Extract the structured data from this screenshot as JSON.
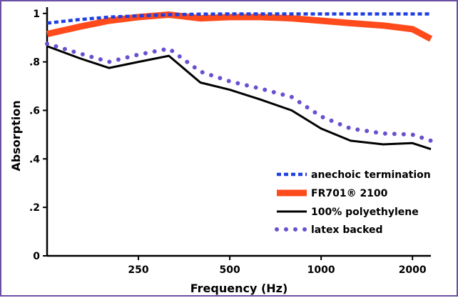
{
  "chart_data": {
    "type": "line",
    "title": "",
    "xlabel": "Frequency (Hz)",
    "ylabel": "Absorption",
    "xlim": [
      125,
      2300
    ],
    "ylim": [
      0,
      1.02
    ],
    "x_ticks": [
      250,
      500,
      1000,
      2000
    ],
    "x_tick_labels": [
      "250",
      "500",
      "1000",
      "2000"
    ],
    "y_ticks": [
      0,
      0.2,
      0.4,
      0.6,
      0.8,
      1.0
    ],
    "y_tick_labels": [
      "0",
      ".2",
      ".4",
      ".6",
      ".8",
      "1"
    ],
    "grid": false,
    "legend_position": "bottom-right",
    "series": [
      {
        "name": "anechoic termination",
        "color": "#1f3fe0",
        "style": "dashed",
        "x": [
          125,
          160,
          200,
          250,
          315,
          400,
          500,
          630,
          800,
          1000,
          1250,
          1600,
          2000,
          2300
        ],
        "y": [
          0.96,
          0.975,
          0.985,
          0.99,
          0.995,
          0.997,
          0.998,
          0.998,
          0.998,
          0.998,
          0.998,
          0.998,
          0.998,
          0.998
        ]
      },
      {
        "name": "FR701® 2100",
        "color": "#ff4a1c",
        "style": "solid-thick",
        "x": [
          125,
          160,
          200,
          250,
          315,
          400,
          500,
          630,
          800,
          1000,
          1250,
          1600,
          2000,
          2300
        ],
        "y": [
          0.915,
          0.945,
          0.97,
          0.985,
          0.995,
          0.98,
          0.985,
          0.985,
          0.98,
          0.97,
          0.96,
          0.95,
          0.935,
          0.895
        ]
      },
      {
        "name": "100% polyethylene",
        "color": "#000000",
        "style": "solid",
        "x": [
          125,
          160,
          200,
          250,
          315,
          400,
          500,
          630,
          800,
          1000,
          1250,
          1600,
          2000,
          2300
        ],
        "y": [
          0.865,
          0.815,
          0.775,
          0.8,
          0.825,
          0.715,
          0.685,
          0.645,
          0.6,
          0.525,
          0.475,
          0.46,
          0.465,
          0.44
        ]
      },
      {
        "name": "latex backed",
        "color": "#6a4fd0",
        "style": "dotted",
        "x": [
          125,
          160,
          200,
          250,
          315,
          400,
          500,
          630,
          800,
          1000,
          1250,
          1600,
          2000,
          2300
        ],
        "y": [
          0.875,
          0.835,
          0.8,
          0.83,
          0.855,
          0.76,
          0.72,
          0.69,
          0.655,
          0.575,
          0.525,
          0.505,
          0.5,
          0.475
        ]
      }
    ]
  }
}
